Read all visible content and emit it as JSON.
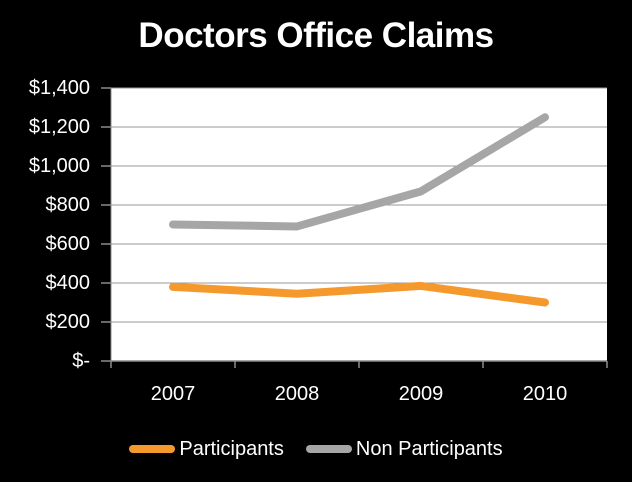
{
  "slide": {
    "background_color": "#000000",
    "text_color": "#FFFFFF"
  },
  "chart_data": {
    "type": "line",
    "title": "Doctors Office Claims",
    "categories": [
      "2007",
      "2008",
      "2009",
      "2010"
    ],
    "series": [
      {
        "name": "Participants",
        "color": "#F5992D",
        "values": [
          380,
          345,
          385,
          300
        ]
      },
      {
        "name": "Non Participants",
        "color": "#A6A6A6",
        "values": [
          700,
          690,
          870,
          1250
        ]
      }
    ],
    "y_axis": {
      "min": 0,
      "max": 1400,
      "step": 200,
      "tick_labels": [
        "$-",
        "$200",
        "$400",
        "$600",
        "$800",
        "$1,000",
        "$1,200",
        "$1,400"
      ]
    },
    "grid": true,
    "legend_position": "bottom",
    "plot_background_color": "#FFFFFF",
    "gridline_color": "#999999",
    "axis_color": "#8C8C8C"
  }
}
